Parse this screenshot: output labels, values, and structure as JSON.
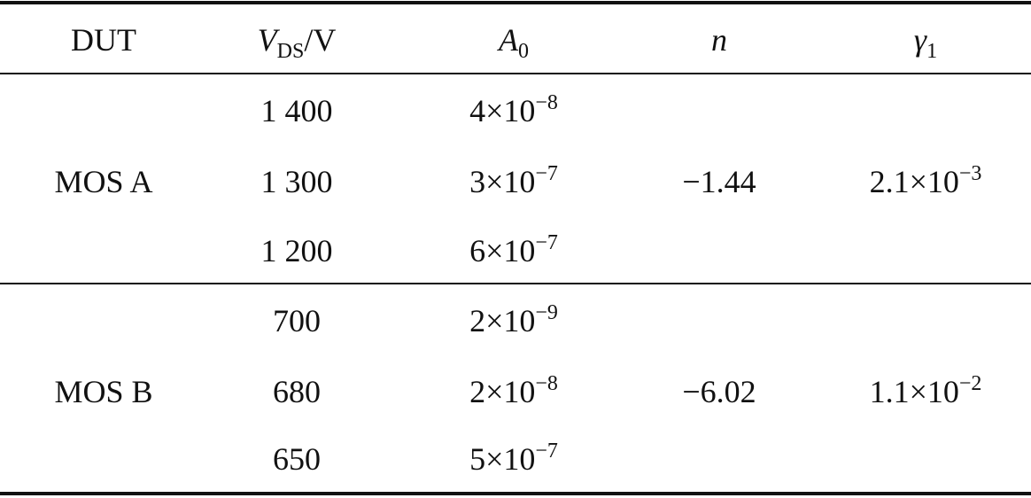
{
  "table": {
    "header": {
      "dut": "DUT",
      "vds": {
        "symbol": "V",
        "sub": "DS",
        "unit": "/V"
      },
      "a0": {
        "symbol": "A",
        "sub": "0"
      },
      "n": "n",
      "gamma": {
        "symbol": "γ",
        "sub": "1"
      }
    },
    "groups": [
      {
        "dut": "MOS A",
        "vds": [
          "1 400",
          "1 300",
          "1 200"
        ],
        "a0": [
          {
            "base": "4×10",
            "exp": "−8"
          },
          {
            "base": "3×10",
            "exp": "−7"
          },
          {
            "base": "6×10",
            "exp": "−7"
          }
        ],
        "n": "−1.44",
        "gamma": {
          "base": "2.1×10",
          "exp": "−3"
        }
      },
      {
        "dut": "MOS B",
        "vds": [
          "700",
          "680",
          "650"
        ],
        "a0": [
          {
            "base": "2×10",
            "exp": "−9"
          },
          {
            "base": "2×10",
            "exp": "−8"
          },
          {
            "base": "5×10",
            "exp": "−7"
          }
        ],
        "n": "−6.02",
        "gamma": {
          "base": "1.1×10",
          "exp": "−2"
        }
      }
    ]
  }
}
